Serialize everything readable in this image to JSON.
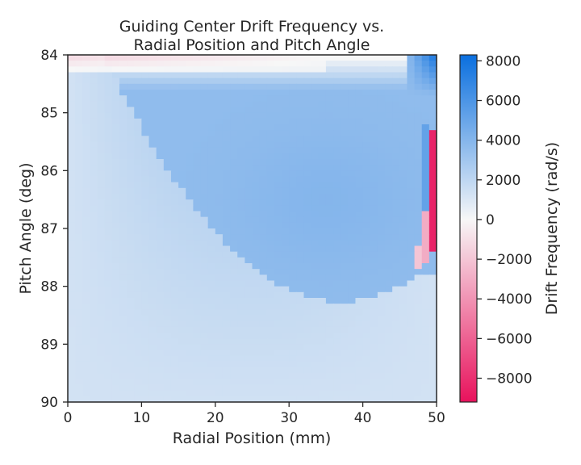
{
  "chart_data": {
    "type": "heatmap",
    "title_lines": [
      "Guiding Center Drift Frequency vs.",
      "Radial Position and Pitch Angle"
    ],
    "xlabel": "Radial Position (mm)",
    "ylabel": "Pitch Angle (deg)",
    "colorbar_label": "Drift Frequency (rad/s)",
    "xlim": [
      0,
      50
    ],
    "ylim": [
      84,
      90
    ],
    "y_inverted": true,
    "x_ticks": [
      0,
      10,
      20,
      30,
      40,
      50
    ],
    "y_ticks": [
      84,
      85,
      86,
      87,
      88,
      89,
      90
    ],
    "colorbar_range": [
      -9200,
      8300
    ],
    "colorbar_ticks": [
      8000,
      6000,
      4000,
      2000,
      0,
      -2000,
      -4000,
      -6000,
      -8000
    ],
    "colorbar_tick_labels": [
      "8000",
      "6000",
      "4000",
      "2000",
      "0",
      "−2000",
      "−4000",
      "−6000",
      "−8000"
    ],
    "colormap": {
      "negative": "#e8125c",
      "zero": "#f7f7f7",
      "positive": "#0a6fdf"
    },
    "grid": false,
    "grid_cols": 50,
    "grid_rows": 60,
    "regions": [
      {
        "description": "low drift band at high pitch angle",
        "pitch_range": [
          88.2,
          90
        ],
        "value_approx": 1500
      },
      {
        "description": "main positive drift region",
        "pitch_range": [
          84.6,
          88.2
        ],
        "value_approx": 3500
      },
      {
        "description": "peak positive near outer radius top",
        "radius_range": [
          47,
          50
        ],
        "pitch_range": [
          84,
          84.5
        ],
        "value_approx": 8000
      },
      {
        "description": "strong negative drift strip at outer edge",
        "radius_range": [
          49,
          50
        ],
        "pitch_range": [
          85.3,
          87.4
        ],
        "value_approx": -8500
      },
      {
        "description": "weak negative band at low pitch",
        "pitch_range": [
          84,
          84.3
        ],
        "value_approx": -1500
      }
    ]
  }
}
